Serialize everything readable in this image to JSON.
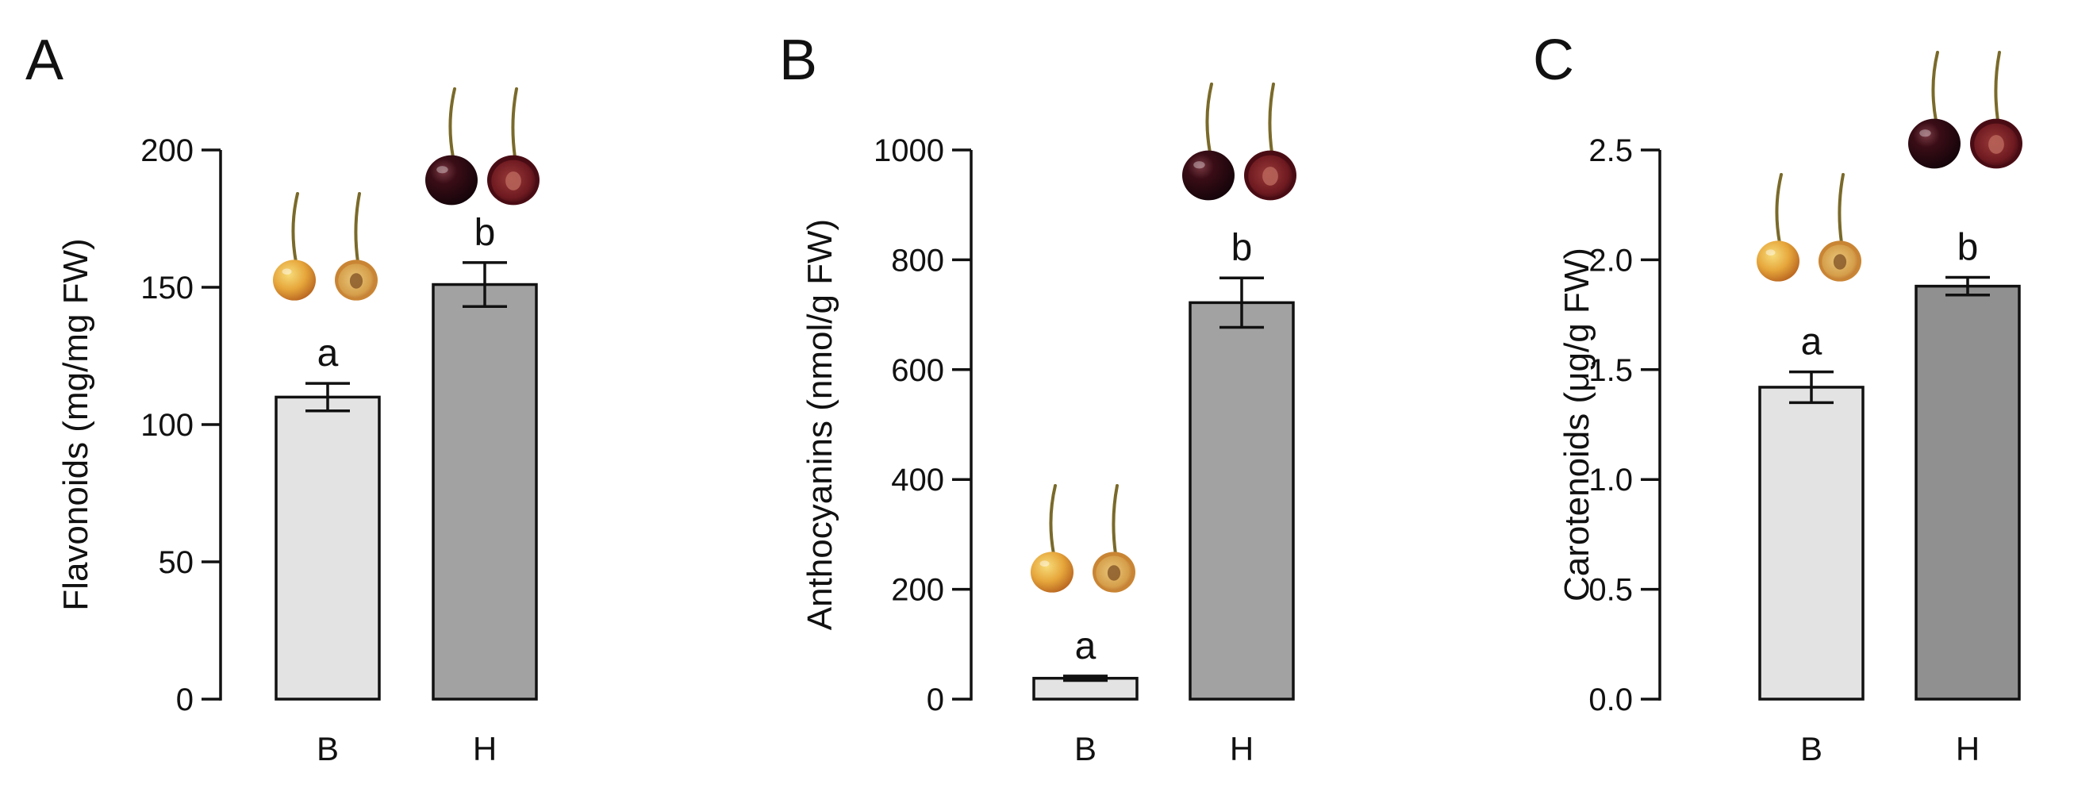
{
  "chart_data": [
    {
      "panel_label": "A",
      "type": "bar",
      "ylabel": "Flavonoids (mg/mg FW)",
      "categories": [
        "B",
        "H"
      ],
      "values": [
        110,
        151
      ],
      "errors": [
        5,
        8
      ],
      "significance": [
        "a",
        "b"
      ],
      "bar_colors": [
        "#e3e3e3",
        "#a2a2a2"
      ],
      "fruit_colors": [
        "yellow",
        "dark-red"
      ],
      "ylim": [
        0,
        200
      ],
      "yticks": [
        "0",
        "50",
        "100",
        "150",
        "200"
      ],
      "grid": false,
      "legend": "none"
    },
    {
      "panel_label": "B",
      "type": "bar",
      "ylabel": "Anthocyanins (nmol/g  FW)",
      "categories": [
        "B",
        "H"
      ],
      "values": [
        38,
        722
      ],
      "errors": [
        4,
        45
      ],
      "significance": [
        "a",
        "b"
      ],
      "bar_colors": [
        "#e3e3e3",
        "#a2a2a2"
      ],
      "fruit_colors": [
        "yellow",
        "dark-red"
      ],
      "ylim": [
        0,
        1000
      ],
      "yticks": [
        "0",
        "200",
        "400",
        "600",
        "800",
        "1000"
      ],
      "grid": false,
      "legend": "none"
    },
    {
      "panel_label": "C",
      "type": "bar",
      "ylabel": "Carotenoids (μg/g FW)",
      "categories": [
        "B",
        "H"
      ],
      "values": [
        1.42,
        1.88
      ],
      "errors": [
        0.07,
        0.04
      ],
      "significance": [
        "a",
        "b"
      ],
      "bar_colors": [
        "#e3e3e3",
        "#909090"
      ],
      "fruit_colors": [
        "yellow",
        "dark-red"
      ],
      "ylim": [
        0,
        2.5
      ],
      "yticks": [
        "0.0",
        "0.5",
        "1.0",
        "1.5",
        "2.0",
        "2.5"
      ],
      "grid": false,
      "legend": "none"
    }
  ],
  "colors": {
    "yellow_fruit_skin": "#e2a43a",
    "yellow_fruit_flesh": "#c48a3c",
    "yellow_fruit_pit": "#8a5a2a",
    "red_fruit_skin": "#3a0d14",
    "red_fruit_flesh": "#7a1f22",
    "stem": "#7a6a2a"
  }
}
